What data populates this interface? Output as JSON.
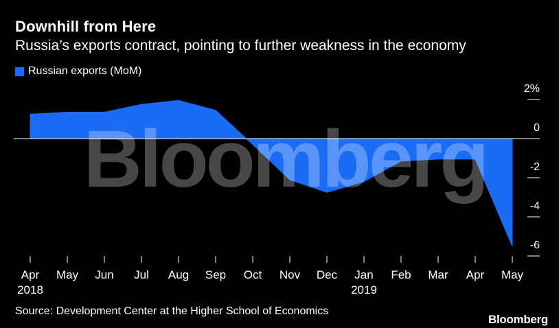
{
  "header": {
    "title": "Downhill from Here",
    "subtitle": "Russia’s exports contract, pointing to further weakness in the economy"
  },
  "legend": {
    "label": "Russian exports (MoM)"
  },
  "footer": {
    "source": "Source: Development Center at the Higher School of Economics",
    "brand": "Bloomberg"
  },
  "watermark": "Bloomberg",
  "colors": {
    "series": "#1a6cf5",
    "background": "#000000",
    "axis": "#ffffff"
  },
  "chart_data": {
    "type": "area",
    "title": "Downhill from Here",
    "subtitle": "Russia’s exports contract, pointing to further weakness in the economy",
    "categories": [
      "Apr 2018",
      "May",
      "Jun",
      "Jul",
      "Aug",
      "Sep",
      "Oct",
      "Nov",
      "Dec",
      "Jan 2019",
      "Feb",
      "Mar",
      "Apr",
      "May"
    ],
    "x_tick_labels": [
      {
        "top": "Apr",
        "bottom": "2018"
      },
      {
        "top": "May",
        "bottom": ""
      },
      {
        "top": "Jun",
        "bottom": ""
      },
      {
        "top": "Jul",
        "bottom": ""
      },
      {
        "top": "Aug",
        "bottom": ""
      },
      {
        "top": "Sep",
        "bottom": ""
      },
      {
        "top": "Oct",
        "bottom": ""
      },
      {
        "top": "Nov",
        "bottom": ""
      },
      {
        "top": "Dec",
        "bottom": ""
      },
      {
        "top": "Jan",
        "bottom": "2019"
      },
      {
        "top": "Feb",
        "bottom": ""
      },
      {
        "top": "Mar",
        "bottom": ""
      },
      {
        "top": "Apr",
        "bottom": ""
      },
      {
        "top": "May",
        "bottom": ""
      }
    ],
    "series": [
      {
        "name": "Russian exports (MoM)",
        "values": [
          1.25,
          1.35,
          1.35,
          1.75,
          1.95,
          1.45,
          -0.3,
          -2.1,
          -2.75,
          -2.2,
          -1.15,
          -1.05,
          -1.05,
          -5.5
        ]
      }
    ],
    "y_axis": {
      "position": "right",
      "ylim": [
        -6,
        2
      ],
      "ticks": [
        2,
        0,
        -2,
        -4,
        -6
      ],
      "tick_labels": [
        "2%",
        "0",
        "-2",
        "-4",
        "-6"
      ]
    },
    "xlabel": "",
    "ylabel": "",
    "grid": false,
    "legend_position": "top-left"
  }
}
